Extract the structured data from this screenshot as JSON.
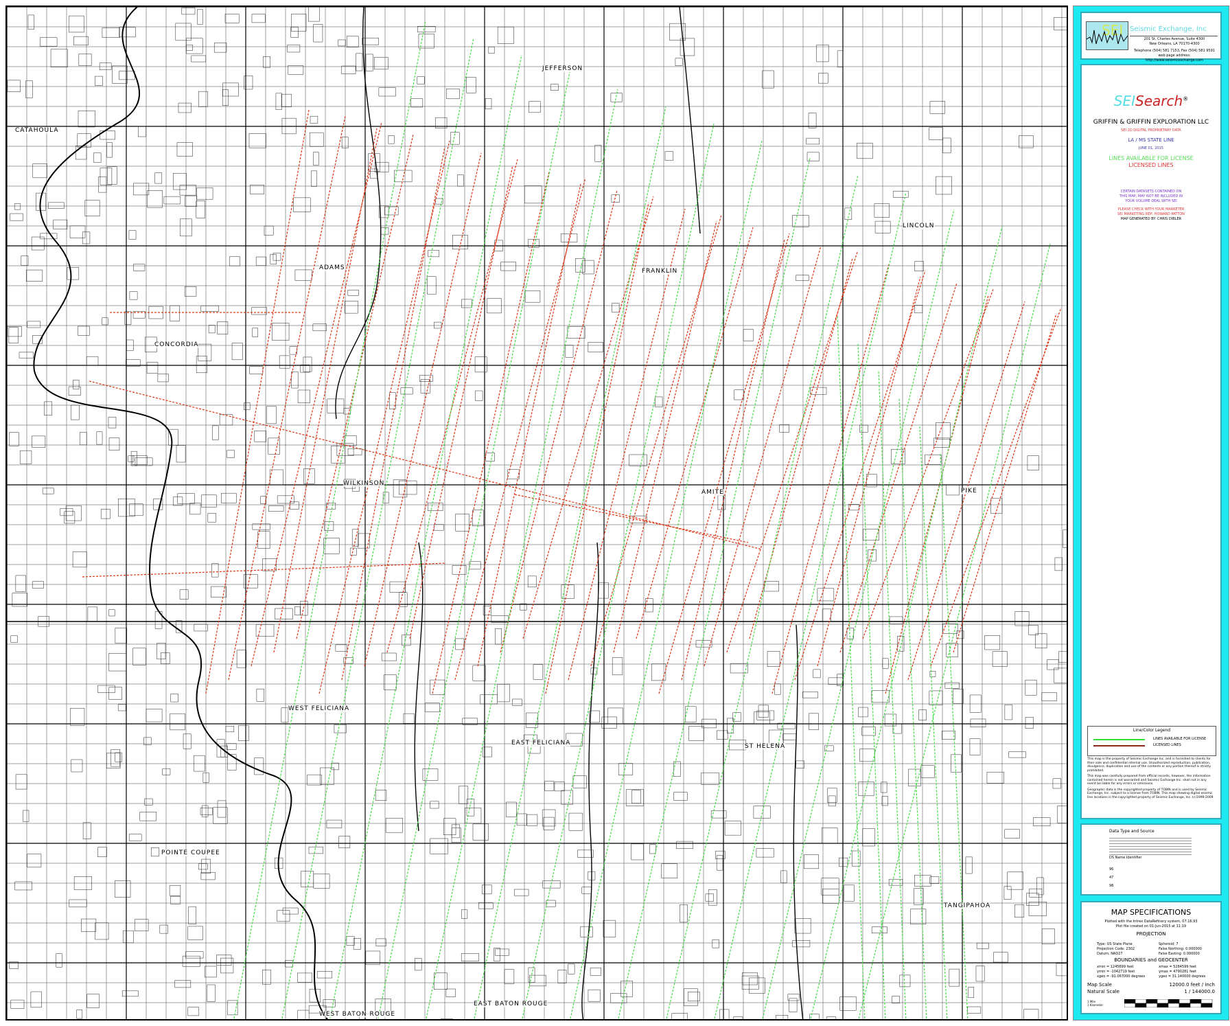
{
  "header": {
    "company": "Seismic Exchange, Inc",
    "logo_text": "SEI",
    "address": [
      "201 St. Charles Avenue, Suite 4300",
      "New Orleans, LA 70170-4300"
    ],
    "contact": [
      "Telephone (504) 581 7153, Fax (504) 581 9591",
      "web page address: http://www.seismicexchange.com"
    ]
  },
  "title_block": {
    "logo_sei": "SEI",
    "logo_search": "Search",
    "registered": "®",
    "client": "GRIFFIN & GRIFFIN EXPLORATION LLC",
    "data_type": "SEI 2D DIGITAL PROPRIETARY DATA",
    "area": "LA / MS STATE LINE",
    "date": "JUNE 01, 2015",
    "available_label": "LINES AVAILABLE FOR LICENSE",
    "licensed_label": "LICENSED LINES",
    "notice": [
      "CERTAIN DATASETS CONTAINED ON",
      "THIS MAP, MAY NOT BE INCLUDED IN",
      "YOUR VOLUME DEAL WITH SEI"
    ],
    "marketer": [
      "PLEASE CHECK WITH YOUR MARKETER",
      "SEI MARKETING REP: HOWARD PATTON"
    ],
    "generated_by": "MAP GENERATED BY: CHRIS DIBLER"
  },
  "legend": {
    "title": "Line/Color Legend",
    "items": [
      {
        "label": "LINES AVAILABLE FOR LICENSE",
        "color": "#33dd33"
      },
      {
        "label": "LICENSED LINES",
        "color": "#8b2a1a"
      }
    ],
    "disclaimers": [
      "This map is the property of Seismic Exchange Inc. and is furnished to clients for their sole and confidential internal use. Unauthorized reproduction, publication, divulgence, duplication and use of the contents or any portion thereof is strictly prohibited.",
      "This map was carefully prepared from official records, however, the information contained herein is not warranted and Seismic Exchange Inc. shall not in any event be liable for any errors or omissions.",
      "Geographic data is the copyrighted property of TOBIN and is used by Seismic Exchange, Inc. subject to a license from TOBIN. This map showing digital seismic line locations is the copyrighted property of Seismic Exchange, Inc. (c)1999-2009"
    ]
  },
  "data_source": {
    "title": "Data Type and Source",
    "ds_header": "DS Name  Identifier",
    "ds_ids": [
      "96",
      "47",
      "98"
    ]
  },
  "specs": {
    "title": "MAP SPECIFICATIONS",
    "plotted": [
      "Plotted with the Intrex DataRefinery system, 07.16.93",
      "Plot file created on 01-Jun-2015 at 11:19"
    ],
    "projection_title": "PROJECTION",
    "projection_left": [
      "Type: US State Plane",
      "Projection Code: 2302",
      "Datum: NAD27"
    ],
    "projection_right": [
      "Spheroid: 7",
      "False Northing: 0.000000",
      "False Easting: 0.000000"
    ],
    "boundaries_title": "BOUNDARIES and GEOCENTER",
    "bounds_left": [
      "xmin = 1245699 feet",
      "ymin = -1042719 feet",
      "xgeo = -91.067000 degrees"
    ],
    "bounds_right": [
      "xmax = 5284599 feet",
      "ymax = 4790281 feet",
      "ygeo = 31.140000 degrees"
    ],
    "map_scale_label": "Map Scale",
    "map_scale_value": "12000.0 feet / inch",
    "natural_scale_label": "Natural Scale",
    "natural_scale_value": "1 / 144000.0",
    "bar_labels": [
      "1 Mile",
      "1 Kilometer"
    ]
  },
  "map": {
    "counties": [
      "CATAHOULA",
      "CONCORDIA",
      "ADAMS",
      "FRANKLIN",
      "LINCOLN",
      "JEFFERSON",
      "WILKINSON",
      "AMITE",
      "PIKE",
      "WEST FELICIANA",
      "EAST FELICIANA",
      "ST HELENA",
      "TANGIPAHOA",
      "POINTE COUPEE",
      "WEST BATON ROUGE",
      "EAST BATON ROUGE"
    ],
    "licensed_color": "#dd3311",
    "available_color": "#44dd44"
  }
}
